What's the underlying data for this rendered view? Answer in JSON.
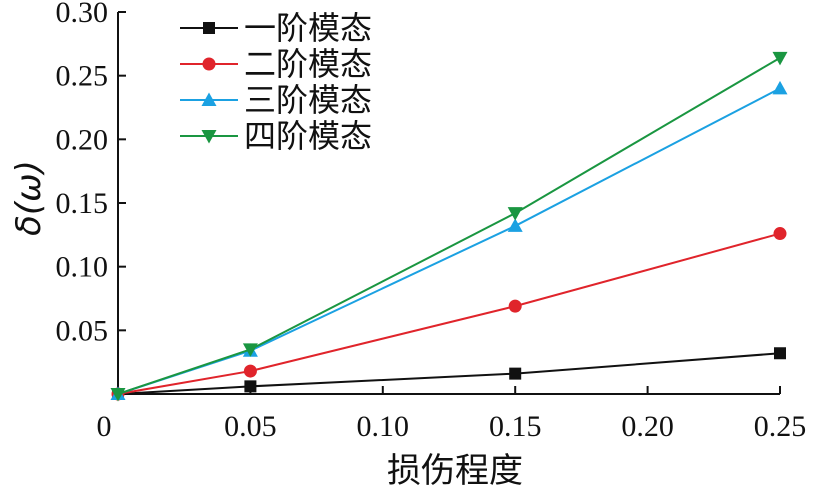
{
  "chart_data": {
    "type": "line",
    "xlabel": "损伤程度",
    "ylabel": "δ(ω)",
    "x": [
      0,
      0.05,
      0.15,
      0.25
    ],
    "xlim": [
      0,
      0.25
    ],
    "ylim": [
      0,
      0.3
    ],
    "x_tick_labels": [
      "0",
      "0.05",
      "0.10",
      "0.15",
      "0.20",
      "0.25"
    ],
    "x_tick_values": [
      0,
      0.05,
      0.1,
      0.15,
      0.2,
      0.25
    ],
    "y_tick_labels": [
      "0.05",
      "0.10",
      "0.15",
      "0.20",
      "0.25",
      "0.30"
    ],
    "y_tick_values": [
      0.05,
      0.1,
      0.15,
      0.2,
      0.25,
      0.3
    ],
    "grid": false,
    "legend_position": "top-left",
    "series": [
      {
        "name": "一阶模态",
        "values": [
          0,
          0.006,
          0.016,
          0.032
        ],
        "color": "#111111",
        "marker": "square"
      },
      {
        "name": "二阶模态",
        "values": [
          0,
          0.018,
          0.069,
          0.126
        ],
        "color": "#e0242b",
        "marker": "circle"
      },
      {
        "name": "三阶模态",
        "values": [
          0,
          0.034,
          0.132,
          0.24
        ],
        "color": "#1ba1e2",
        "marker": "triangle-up"
      },
      {
        "name": "四阶模态",
        "values": [
          0,
          0.035,
          0.142,
          0.264
        ],
        "color": "#1a9641",
        "marker": "triangle-down"
      }
    ]
  }
}
